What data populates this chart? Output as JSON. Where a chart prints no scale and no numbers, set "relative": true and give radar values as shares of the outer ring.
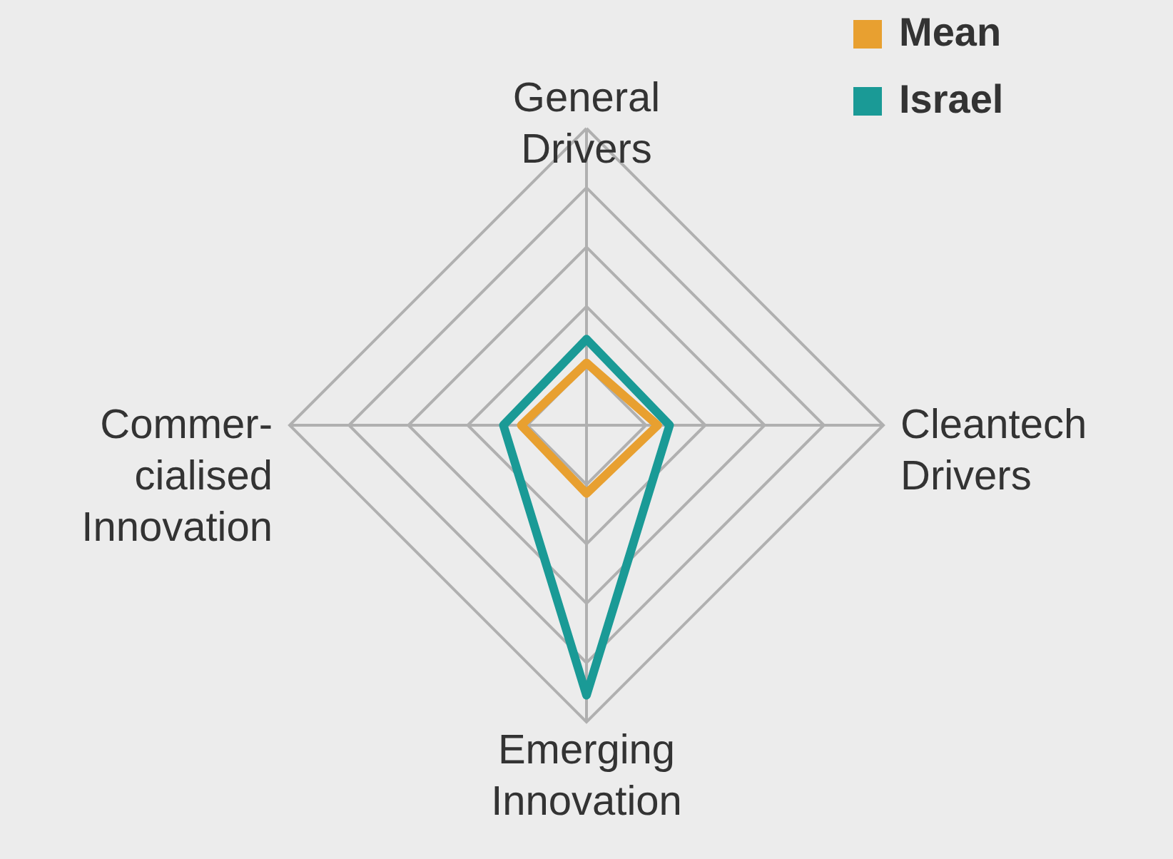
{
  "chart_data": {
    "type": "radar",
    "relative": true,
    "grid": true,
    "legend": "top right",
    "categories": [
      "General Drivers",
      "Cleantech Drivers",
      "Emerging Innovation",
      "Commer-cialised Innovation"
    ],
    "series": [
      {
        "name": "Mean",
        "color": "#e8a030",
        "values": [
          0.21,
          0.24,
          0.23,
          0.22
        ]
      },
      {
        "name": "Israel",
        "color": "#1a9a96",
        "values": [
          0.29,
          0.28,
          0.91,
          0.28
        ]
      }
    ]
  }
}
